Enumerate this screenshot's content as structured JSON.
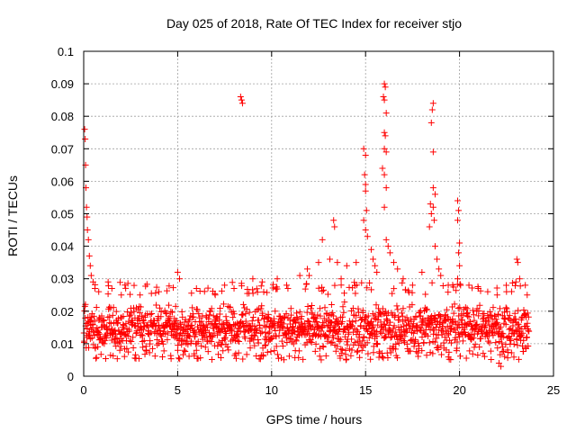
{
  "chart_data": {
    "type": "scatter",
    "title": "Day 025 of 2018, Rate Of TEC Index for receiver stjo",
    "xlabel": "GPS time / hours",
    "ylabel": "ROTI / TECUs",
    "xlim": [
      0,
      25
    ],
    "ylim": [
      0,
      0.1
    ],
    "x_ticks": [
      0,
      5,
      10,
      15,
      20,
      25
    ],
    "y_ticks": [
      0,
      0.01,
      0.02,
      0.03,
      0.04,
      0.05,
      0.06,
      0.07,
      0.08,
      0.09,
      0.1
    ],
    "x_tick_labels": [
      "0",
      "5",
      "10",
      "15",
      "20",
      "25"
    ],
    "y_tick_labels": [
      "0",
      "0.01",
      "0.02",
      "0.03",
      "0.04",
      "0.05",
      "0.06",
      "0.07",
      "0.08",
      "0.09",
      "0.1"
    ],
    "grid": true,
    "marker": "+",
    "marker_color": "#ff0000",
    "data_x_range": [
      0,
      23.7
    ],
    "baseline_band": [
      0.005,
      0.025
    ],
    "series": [
      {
        "name": "ROTI",
        "points": [
          [
            0.05,
            0.076
          ],
          [
            0.08,
            0.073
          ],
          [
            0.1,
            0.065
          ],
          [
            0.12,
            0.058
          ],
          [
            0.15,
            0.052
          ],
          [
            0.18,
            0.049
          ],
          [
            0.2,
            0.045
          ],
          [
            0.25,
            0.042
          ],
          [
            0.3,
            0.037
          ],
          [
            0.35,
            0.034
          ],
          [
            0.4,
            0.031
          ],
          [
            0.5,
            0.029
          ],
          [
            0.6,
            0.027
          ],
          [
            0.8,
            0.026
          ],
          [
            1.3,
            0.029
          ],
          [
            1.5,
            0.027
          ],
          [
            2.0,
            0.025
          ],
          [
            3.0,
            0.025
          ],
          [
            4.0,
            0.026
          ],
          [
            5.0,
            0.032
          ],
          [
            5.1,
            0.03
          ],
          [
            6.0,
            0.027
          ],
          [
            7.0,
            0.025
          ],
          [
            7.5,
            0.028
          ],
          [
            8.0,
            0.027
          ],
          [
            8.35,
            0.086
          ],
          [
            8.4,
            0.085
          ],
          [
            8.45,
            0.084
          ],
          [
            9.0,
            0.03
          ],
          [
            9.5,
            0.029
          ],
          [
            10.3,
            0.03
          ],
          [
            10.8,
            0.028
          ],
          [
            11.5,
            0.031
          ],
          [
            11.9,
            0.033
          ],
          [
            12.0,
            0.031
          ],
          [
            12.5,
            0.035
          ],
          [
            12.7,
            0.042
          ],
          [
            13.1,
            0.036
          ],
          [
            13.3,
            0.048
          ],
          [
            13.35,
            0.046
          ],
          [
            13.5,
            0.035
          ],
          [
            13.7,
            0.03
          ],
          [
            14.0,
            0.034
          ],
          [
            14.5,
            0.035
          ],
          [
            14.9,
            0.07
          ],
          [
            15.0,
            0.068
          ],
          [
            14.95,
            0.062
          ],
          [
            15.0,
            0.059
          ],
          [
            15.0,
            0.057
          ],
          [
            15.05,
            0.051
          ],
          [
            14.9,
            0.048
          ],
          [
            15.0,
            0.045
          ],
          [
            15.1,
            0.043
          ],
          [
            15.3,
            0.039
          ],
          [
            15.4,
            0.036
          ],
          [
            15.5,
            0.034
          ],
          [
            15.6,
            0.032
          ],
          [
            15.9,
            0.064
          ],
          [
            16.0,
            0.09
          ],
          [
            16.05,
            0.089
          ],
          [
            15.95,
            0.086
          ],
          [
            16.0,
            0.085
          ],
          [
            16.1,
            0.081
          ],
          [
            16.0,
            0.075
          ],
          [
            16.05,
            0.074
          ],
          [
            16.0,
            0.07
          ],
          [
            16.1,
            0.069
          ],
          [
            16.0,
            0.062
          ],
          [
            16.1,
            0.058
          ],
          [
            16.0,
            0.052
          ],
          [
            16.1,
            0.042
          ],
          [
            16.2,
            0.04
          ],
          [
            16.3,
            0.038
          ],
          [
            16.5,
            0.035
          ],
          [
            16.7,
            0.033
          ],
          [
            17.0,
            0.03
          ],
          [
            17.5,
            0.028
          ],
          [
            18.0,
            0.032
          ],
          [
            18.4,
            0.046
          ],
          [
            18.5,
            0.05
          ],
          [
            18.45,
            0.053
          ],
          [
            18.6,
            0.084
          ],
          [
            18.55,
            0.082
          ],
          [
            18.5,
            0.078
          ],
          [
            18.6,
            0.069
          ],
          [
            18.6,
            0.058
          ],
          [
            18.7,
            0.056
          ],
          [
            18.6,
            0.052
          ],
          [
            18.65,
            0.048
          ],
          [
            18.7,
            0.04
          ],
          [
            18.8,
            0.036
          ],
          [
            18.9,
            0.033
          ],
          [
            19.0,
            0.031
          ],
          [
            19.4,
            0.028
          ],
          [
            19.9,
            0.054
          ],
          [
            19.95,
            0.051
          ],
          [
            19.9,
            0.048
          ],
          [
            20.0,
            0.041
          ],
          [
            19.95,
            0.038
          ],
          [
            20.0,
            0.034
          ],
          [
            19.9,
            0.03
          ],
          [
            20.5,
            0.028
          ],
          [
            21.0,
            0.027
          ],
          [
            21.5,
            0.026
          ],
          [
            22.0,
            0.025
          ],
          [
            22.2,
            0.003
          ],
          [
            22.1,
            0.004
          ],
          [
            22.5,
            0.026
          ],
          [
            23.0,
            0.029
          ],
          [
            23.05,
            0.036
          ],
          [
            23.1,
            0.035
          ],
          [
            23.2,
            0.03
          ],
          [
            23.5,
            0.028
          ],
          [
            23.6,
            0.025
          ]
        ]
      }
    ]
  }
}
